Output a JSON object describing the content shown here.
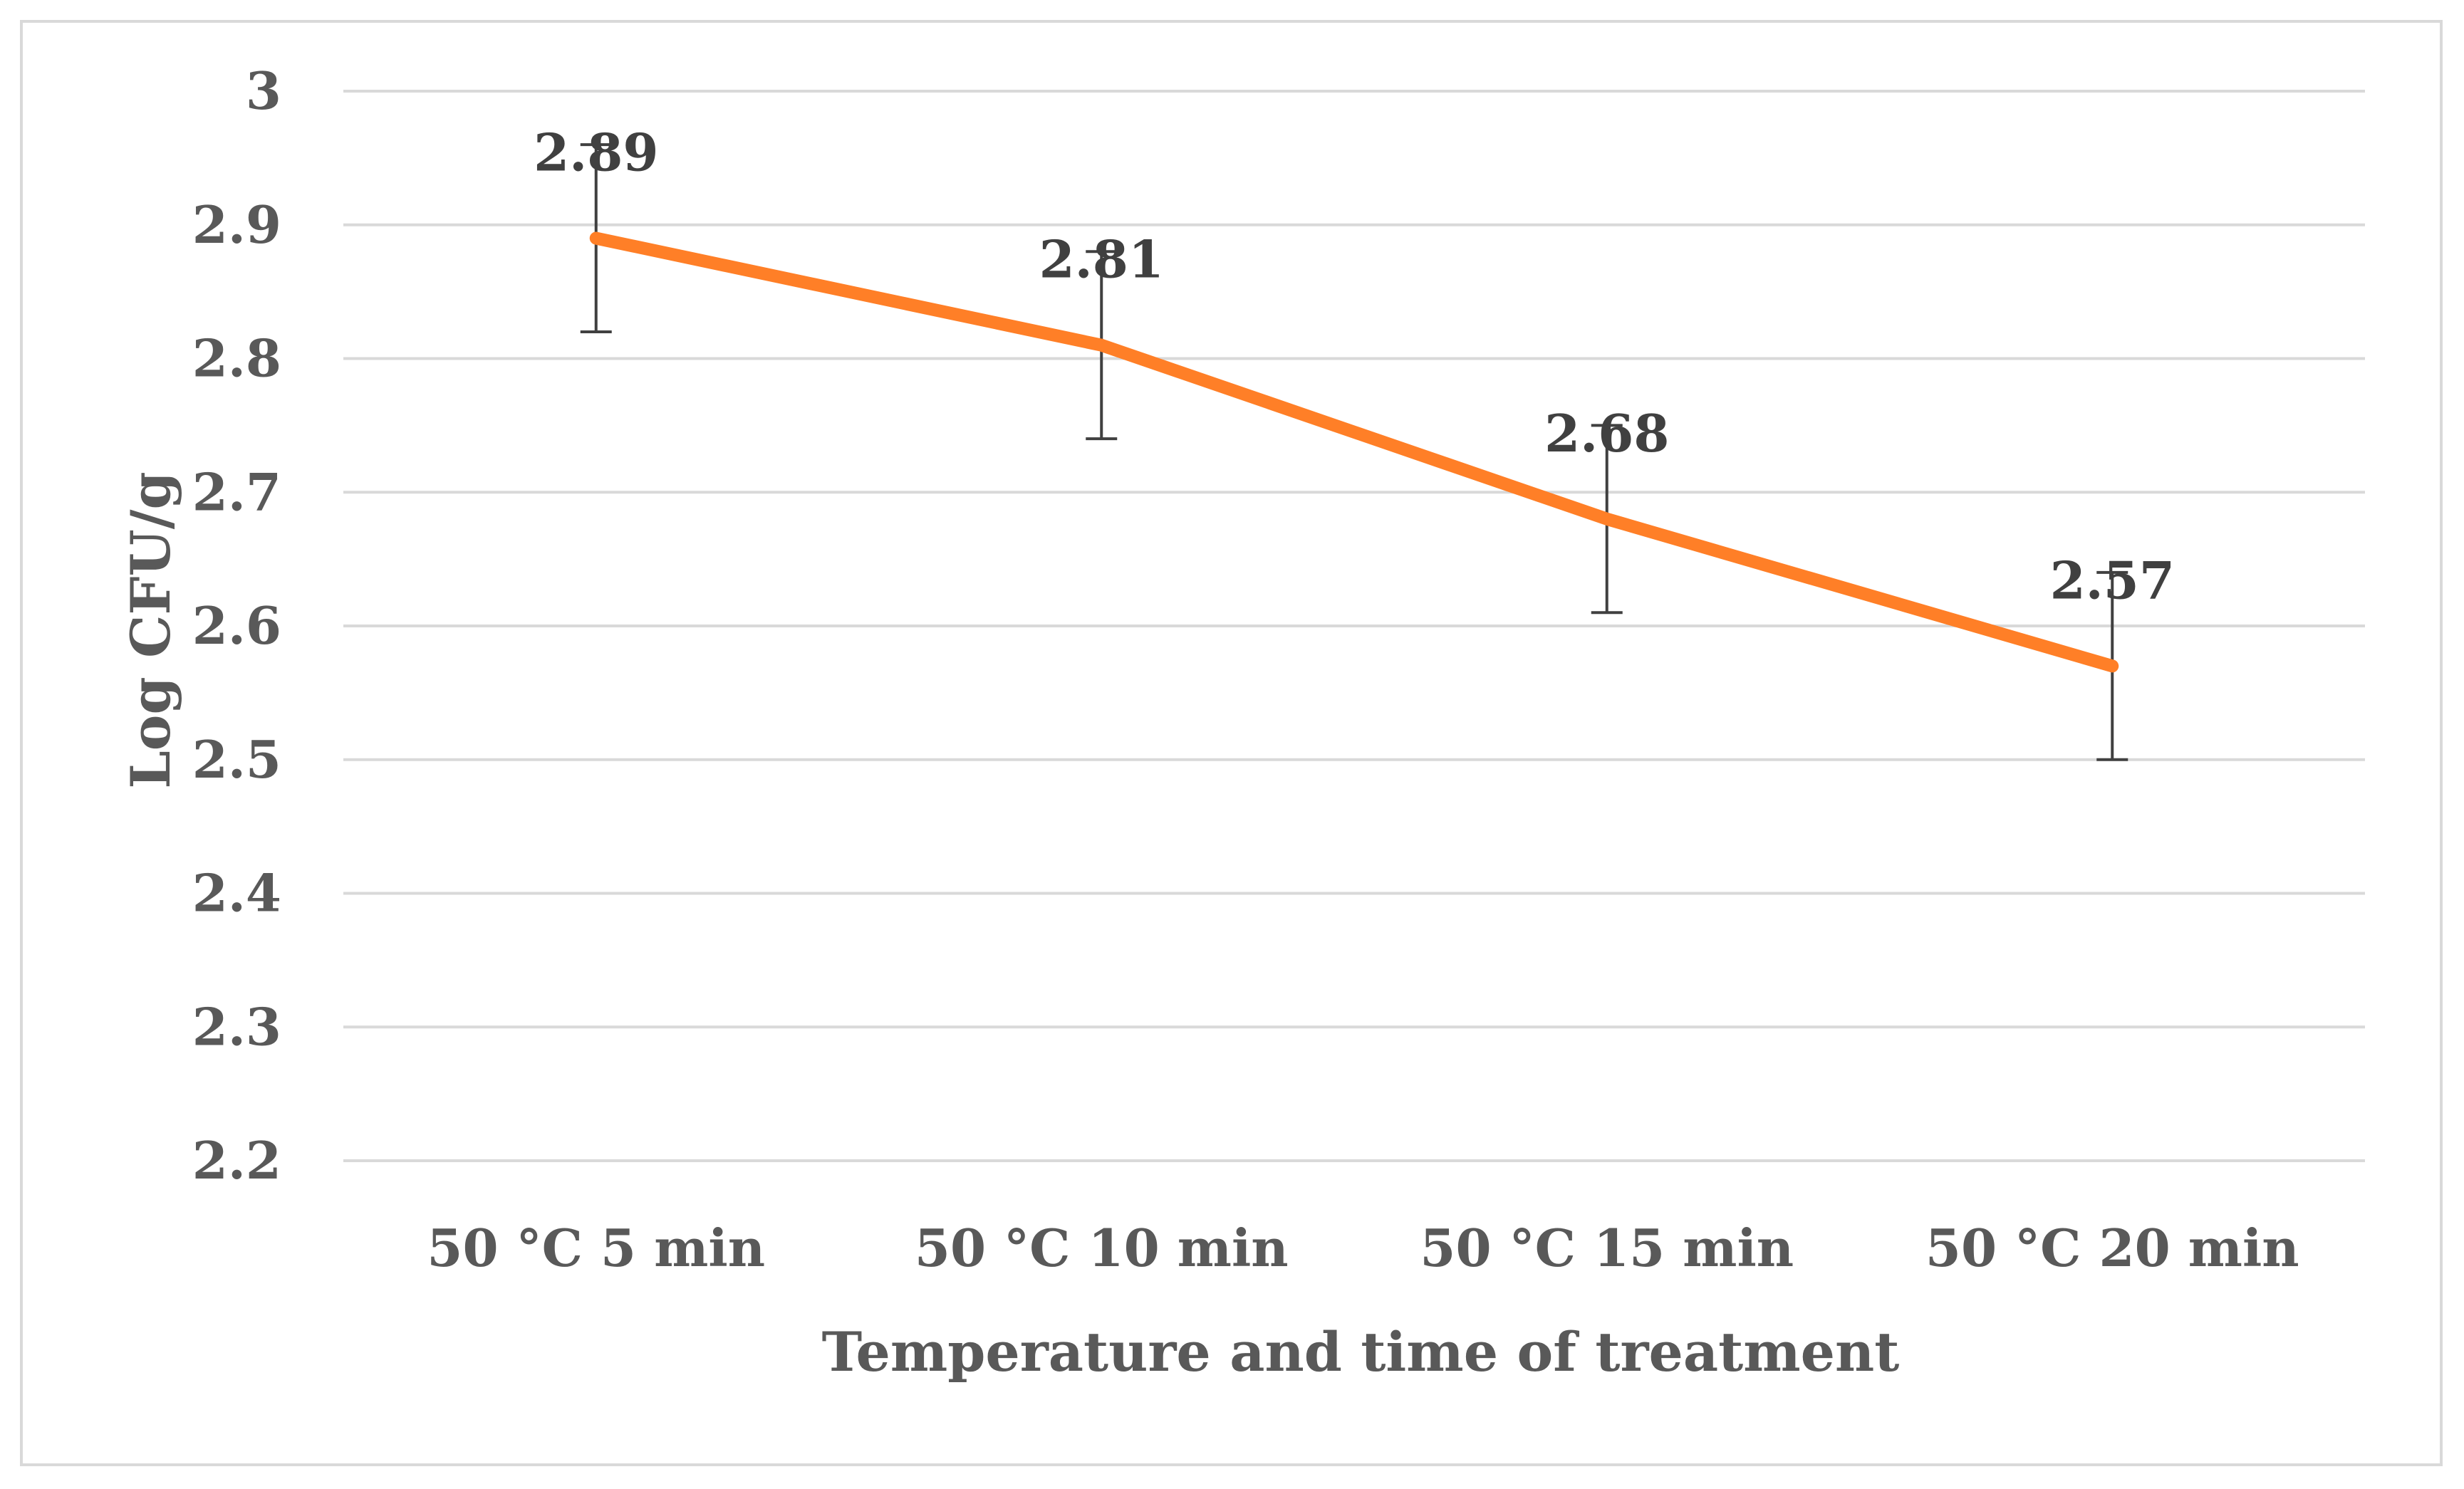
{
  "chart_data": {
    "type": "line",
    "categories": [
      "50 °C 5 min",
      "50 °C 10 min",
      "50 °C 15 min",
      "50 °C 20 min"
    ],
    "series": [
      {
        "values": [
          2.89,
          2.81,
          2.68,
          2.57
        ],
        "error_low": [
          0.07,
          0.07,
          0.07,
          0.07
        ],
        "error_high": [
          0.07,
          0.07,
          0.07,
          0.07
        ],
        "data_labels": [
          "2.89",
          "2.81",
          "2.68",
          "2.57"
        ]
      }
    ],
    "yticks": [
      "2.2",
      "2.3",
      "2.4",
      "2.5",
      "2.6",
      "2.7",
      "2.8",
      "2.9",
      "3"
    ],
    "ylim": [
      2.2,
      3.0
    ],
    "xlabel": "Temperature and time of treatment",
    "ylabel": "Log CFU/g",
    "grid": true,
    "legend": "none",
    "colors": {
      "line": "#ff7f27",
      "grid": "#d9d9d9",
      "error_bar": "#404040",
      "frame": "#d9d9d9"
    }
  }
}
